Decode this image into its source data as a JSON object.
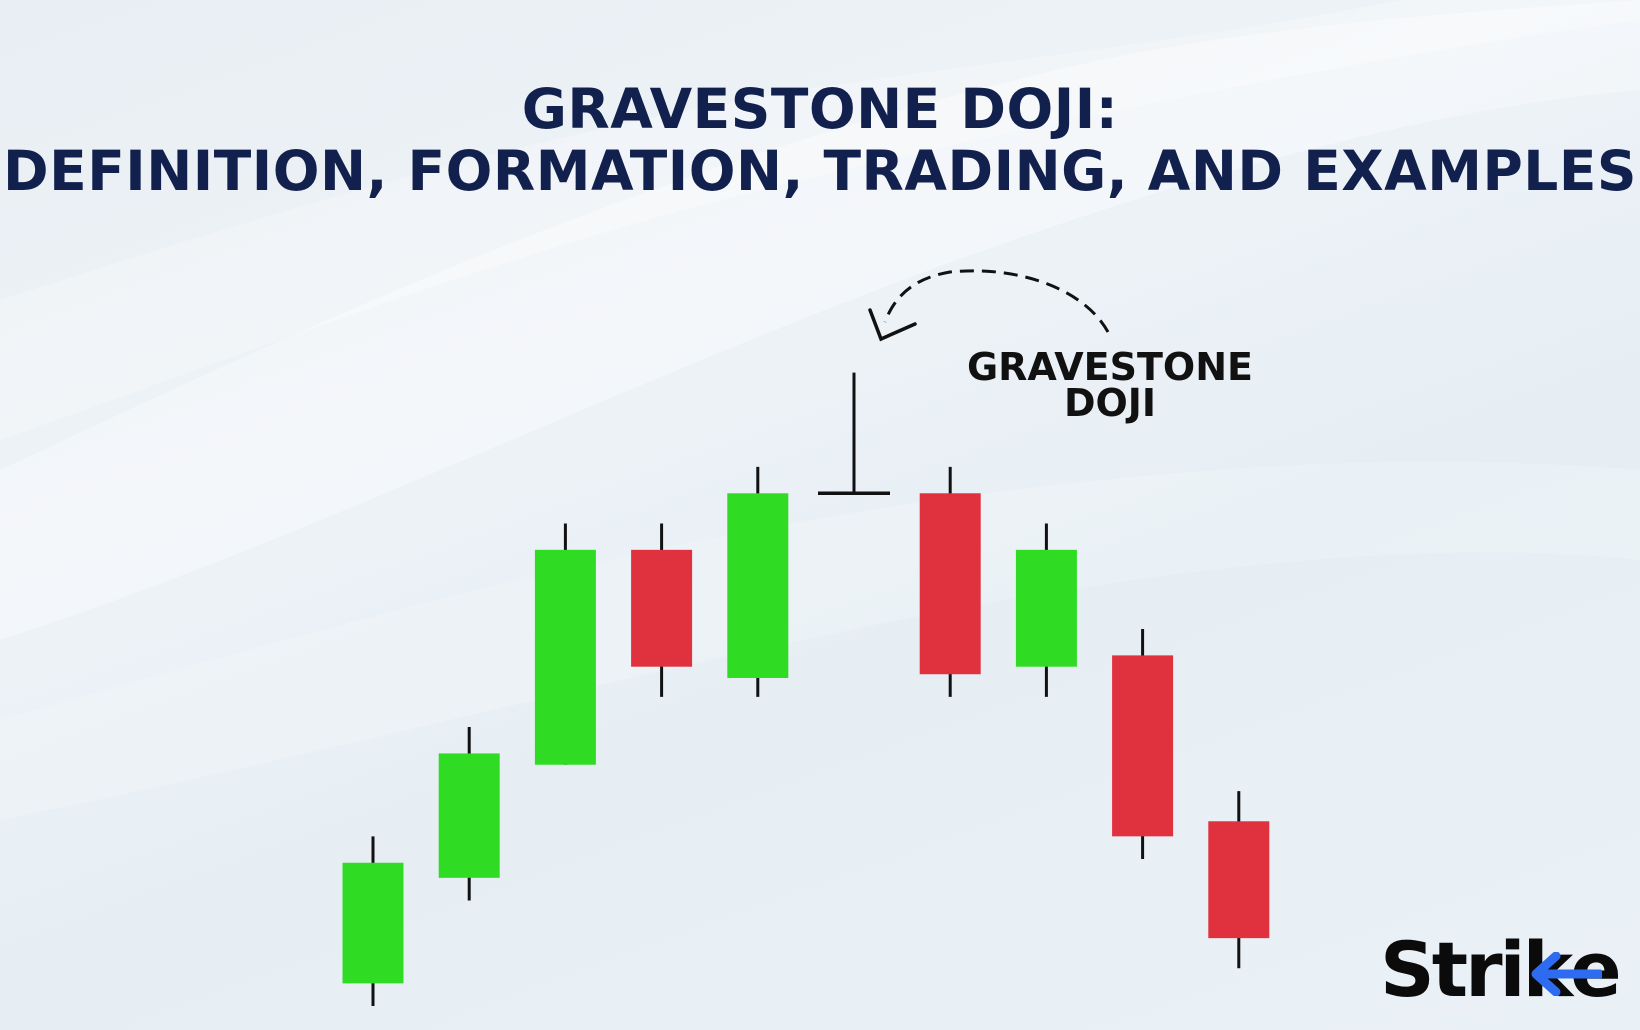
{
  "title": {
    "line1": "GRAVESTONE DOJI:",
    "line2": "DEFINITION, FORMATION, TRADING, AND EXAMPLES"
  },
  "annotation": {
    "line1": "GRAVESTONE",
    "line2": "DOJI"
  },
  "logo": {
    "text_main": "Stri",
    "text_tail": "e",
    "accent_color": "#2d6cf0"
  },
  "colors": {
    "bullish": "#2fdc23",
    "bearish": "#e0313f",
    "title": "#12204d",
    "wick": "#111111"
  },
  "chart_data": {
    "type": "candlestick",
    "title": "GRAVESTONE DOJI:",
    "xlabel": "",
    "ylabel": "",
    "grid": false,
    "ylim": [
      0,
      100
    ],
    "candles": [
      {
        "open": 3.0,
        "close": 19.0,
        "high": 22.5,
        "low": 0.0,
        "direction": "up"
      },
      {
        "open": 17.0,
        "close": 33.5,
        "high": 37.0,
        "low": 14.0,
        "direction": "up"
      },
      {
        "open": 32.0,
        "close": 60.5,
        "high": 64.0,
        "low": 32.0,
        "direction": "up"
      },
      {
        "open": 60.5,
        "close": 45.0,
        "high": 64.0,
        "low": 41.0,
        "direction": "down"
      },
      {
        "open": 43.5,
        "close": 68.0,
        "high": 71.5,
        "low": 41.0,
        "direction": "up"
      },
      {
        "open": 68.0,
        "close": 68.0,
        "high": 84.0,
        "low": 68.0,
        "direction": "doji",
        "label": "GRAVESTONE DOJI"
      },
      {
        "open": 68.0,
        "close": 44.0,
        "high": 71.5,
        "low": 41.0,
        "direction": "down"
      },
      {
        "open": 45.0,
        "close": 60.5,
        "high": 64.0,
        "low": 41.0,
        "direction": "up"
      },
      {
        "open": 46.5,
        "close": 22.5,
        "high": 50.0,
        "low": 19.5,
        "direction": "down"
      },
      {
        "open": 24.5,
        "close": 9.0,
        "high": 28.5,
        "low": 5.0,
        "direction": "down"
      }
    ]
  }
}
